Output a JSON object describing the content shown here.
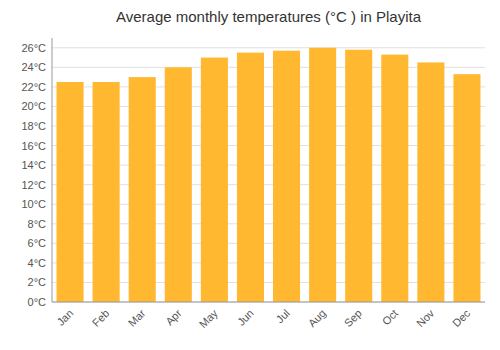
{
  "chart_data": {
    "type": "bar",
    "title": "Average monthly temperatures (°C ) in Playita",
    "categories": [
      "Jan",
      "Feb",
      "Mar",
      "Apr",
      "May",
      "Jun",
      "Jul",
      "Aug",
      "Sep",
      "Oct",
      "Nov",
      "Dec"
    ],
    "values": [
      22.5,
      22.5,
      23.0,
      24.0,
      25.0,
      25.5,
      25.7,
      26.0,
      25.8,
      25.3,
      24.5,
      23.3
    ],
    "color": "#FFB830",
    "ylim": [
      0,
      27
    ],
    "yticks": [
      {
        "value": 0,
        "label": "0°C"
      },
      {
        "value": 2,
        "label": "2°C"
      },
      {
        "value": 4,
        "label": "4°C"
      },
      {
        "value": 6,
        "label": "6°C"
      },
      {
        "value": 8,
        "label": "8°C"
      },
      {
        "value": 10,
        "label": "10°C"
      },
      {
        "value": 12,
        "label": "12°C"
      },
      {
        "value": 14,
        "label": "14°C"
      },
      {
        "value": 16,
        "label": "16°C"
      },
      {
        "value": 18,
        "label": "18°C"
      },
      {
        "value": 20,
        "label": "20°C"
      },
      {
        "value": 22,
        "label": "22°C"
      },
      {
        "value": 24,
        "label": "24°C"
      },
      {
        "value": 26,
        "label": "26°C"
      }
    ],
    "grid": true
  }
}
